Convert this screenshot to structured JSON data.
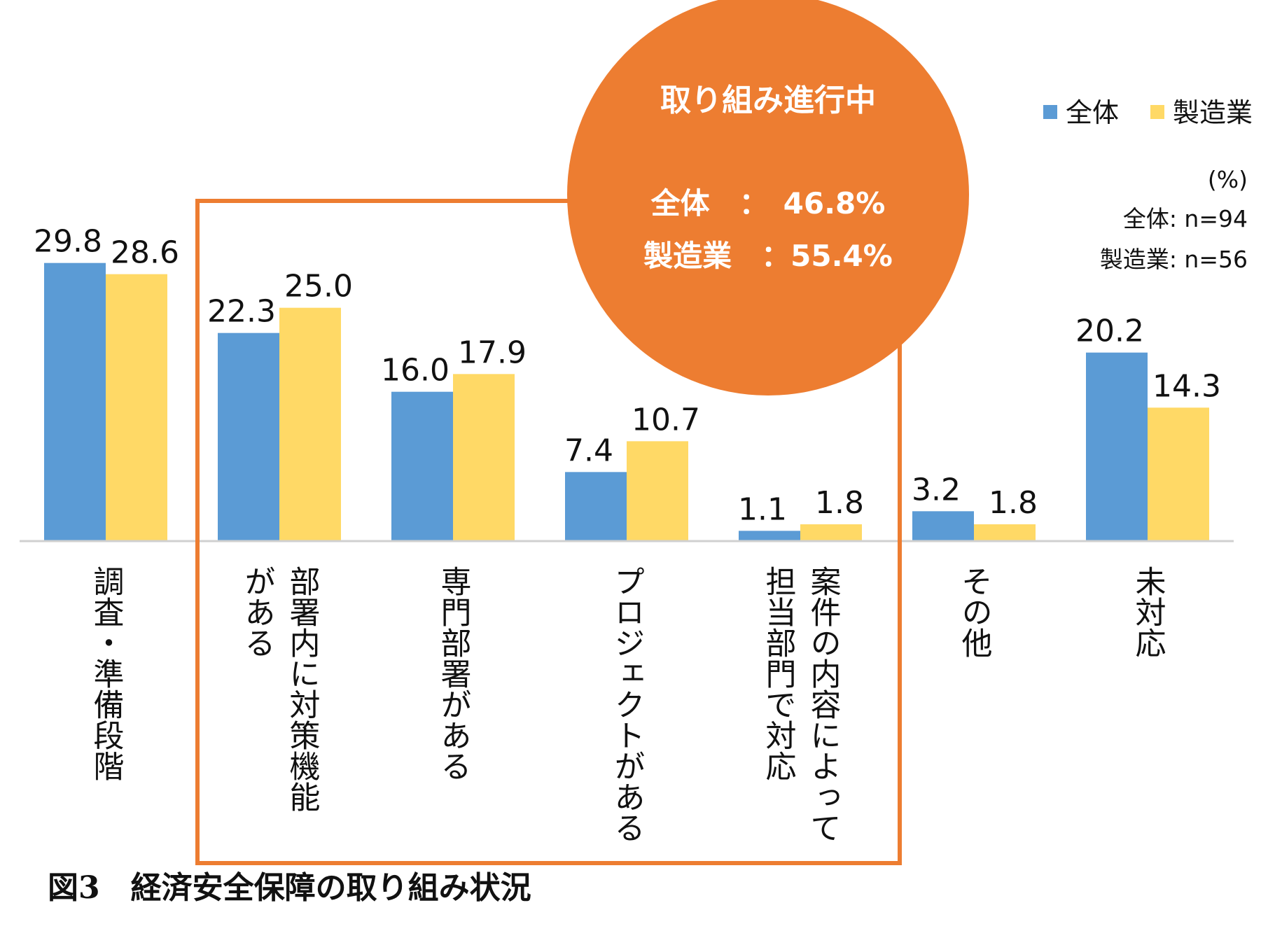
{
  "chart_data": {
    "type": "bar",
    "categories": [
      [
        "調査・準備段階"
      ],
      [
        "部署内に対策機能",
        "がある"
      ],
      [
        "専門部署がある"
      ],
      [
        "プロジェクトがある"
      ],
      [
        "案件の内容によって",
        "担当部門で対応"
      ],
      [
        "その他"
      ],
      [
        "未対応"
      ]
    ],
    "series": [
      {
        "name": "全体",
        "color": "#5b9bd5",
        "values": [
          29.8,
          22.3,
          16.0,
          7.4,
          1.1,
          3.2,
          20.2
        ]
      },
      {
        "name": "製造業",
        "color": "#ffd966",
        "values": [
          28.6,
          25.0,
          17.9,
          10.7,
          1.8,
          1.8,
          14.3
        ]
      }
    ],
    "ylim": [
      0,
      30
    ],
    "unit_label": "(%)",
    "sample_sizes": [
      "全体: n=94",
      "製造業: n=56"
    ],
    "highlight": {
      "title": "取り組み進行中",
      "line1": "全体　：　46.8%",
      "line2": "製造業　：55.4%",
      "color": "#ed7d31"
    }
  },
  "caption": "図3　経済安全保障の取り組み状況"
}
